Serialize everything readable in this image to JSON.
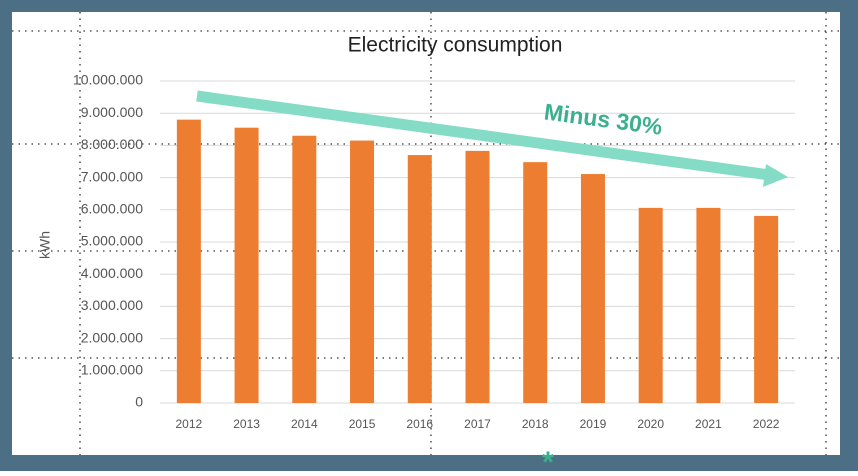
{
  "chart_data": {
    "type": "bar",
    "title": "Electricity consumption",
    "y_label": "kWh",
    "categories": [
      "2012",
      "2013",
      "2014",
      "2015",
      "2016",
      "2017",
      "2018",
      "2019",
      "2020",
      "2021",
      "2022"
    ],
    "values": [
      8800000,
      8550000,
      8300000,
      8150000,
      7700000,
      7830000,
      7480000,
      7110000,
      6060000,
      6060000,
      5810000
    ],
    "color": "#ed7d31",
    "ylim": [
      0,
      10000000
    ],
    "yticks": [
      0,
      {
        "value": 1000000,
        "label": "1.000.000"
      },
      {
        "value": 2000000,
        "label": "2.000.000"
      },
      {
        "value": 3000000,
        "label": "3.000.000"
      },
      {
        "value": 4000000,
        "label": "4.000.000"
      },
      {
        "value": 5000000,
        "label": "5.000.000"
      },
      {
        "value": 6000000,
        "label": "6.000.000"
      },
      {
        "value": 7000000,
        "label": "7.000.000"
      },
      {
        "value": 8000000,
        "label": "8.000.000"
      },
      {
        "value": 9000000,
        "label": "9.000.000"
      },
      {
        "value": 10000000,
        "label": "10.000.000"
      }
    ],
    "grid": true,
    "annotation": "Minus 30%",
    "footer_mark": "*"
  }
}
